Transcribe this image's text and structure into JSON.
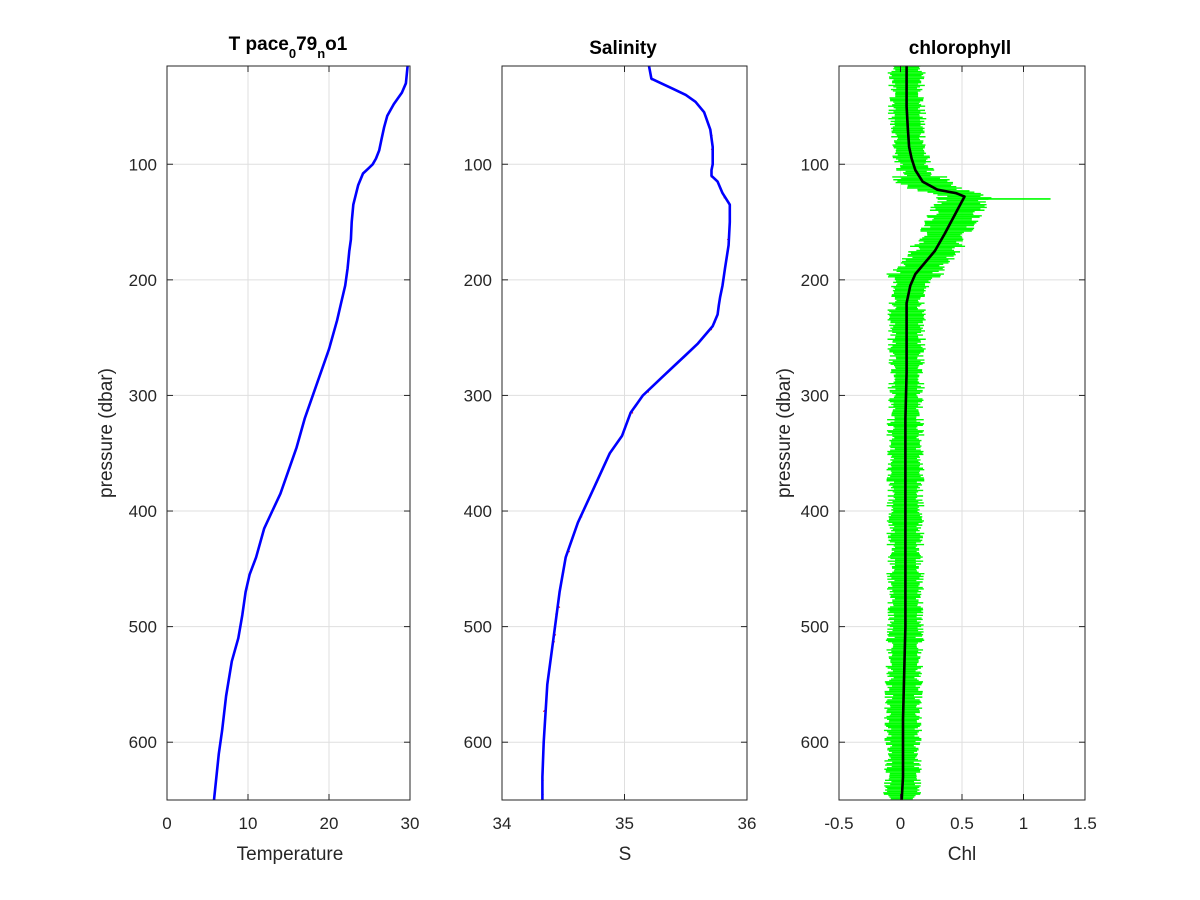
{
  "chart_data": [
    {
      "type": "line",
      "title": "T pace",
      "title_parts": [
        "T pace",
        "0",
        "79",
        "n",
        "o1"
      ],
      "xlabel": "Temperature",
      "ylabel": "pressure (dbar)",
      "xlim": [
        0,
        30
      ],
      "ylim": [
        650,
        15
      ],
      "y_reversed": true,
      "xticks": [
        "0",
        "10",
        "20",
        "30"
      ],
      "yticks": [
        "100",
        "200",
        "300",
        "400",
        "500",
        "600"
      ],
      "grid": true,
      "series": [
        {
          "color": "#0000ff",
          "x": [
            29.7,
            29.6,
            29.5,
            29.0,
            28.0,
            27.2,
            26.8,
            26.5,
            26.2,
            25.8,
            25.4,
            24.8,
            24.2,
            23.6,
            23.0,
            22.8,
            22.7,
            22.5,
            22.3,
            22.0,
            21.5,
            21.0,
            20.0,
            19.0,
            18.0,
            17.0,
            16.0,
            15.0,
            14.0,
            13.0,
            12.0,
            11.0,
            10.2,
            9.7,
            9.3,
            8.8,
            8.0,
            7.3,
            6.8,
            6.4,
            6.1,
            5.8
          ],
          "y": [
            15,
            22,
            30,
            38,
            48,
            58,
            68,
            78,
            88,
            95,
            100,
            104,
            108,
            118,
            135,
            150,
            165,
            175,
            190,
            205,
            220,
            235,
            260,
            280,
            300,
            320,
            345,
            365,
            385,
            400,
            415,
            440,
            455,
            470,
            490,
            510,
            530,
            560,
            590,
            610,
            630,
            650
          ]
        }
      ]
    },
    {
      "type": "line",
      "title": "Salinity",
      "xlabel": "S",
      "ylabel": "",
      "xlim": [
        34,
        36
      ],
      "ylim": [
        650,
        15
      ],
      "y_reversed": true,
      "xticks": [
        "34",
        "35",
        "36"
      ],
      "yticks": [
        "100",
        "200",
        "300",
        "400",
        "500",
        "600"
      ],
      "grid": true,
      "series": [
        {
          "color": "#0000ff",
          "x": [
            35.2,
            35.22,
            35.3,
            35.4,
            35.5,
            35.58,
            35.65,
            35.7,
            35.72,
            35.72,
            35.72,
            35.71,
            35.71,
            35.76,
            35.8,
            35.83,
            35.86,
            35.86,
            35.85,
            35.82,
            35.8,
            35.78,
            35.77,
            35.76,
            35.72,
            35.6,
            35.5,
            35.4,
            35.3,
            35.15,
            35.05,
            34.98,
            34.88,
            34.75,
            34.62,
            34.52,
            34.47,
            34.42,
            34.37,
            34.34,
            34.33,
            34.33
          ],
          "y": [
            15,
            26,
            30,
            35,
            40,
            46,
            55,
            70,
            85,
            95,
            100,
            105,
            110,
            115,
            125,
            130,
            135,
            150,
            170,
            190,
            205,
            215,
            222,
            230,
            240,
            255,
            265,
            275,
            285,
            300,
            315,
            335,
            350,
            380,
            410,
            440,
            470,
            510,
            550,
            600,
            630,
            650
          ]
        }
      ],
      "noise_color": "#ff0000"
    },
    {
      "type": "line",
      "title": "chlorophyll",
      "xlabel": "Chl",
      "ylabel": "pressure (dbar)",
      "xlim": [
        -0.5,
        1.5
      ],
      "ylim": [
        650,
        15
      ],
      "y_reversed": true,
      "xticks": [
        "-0.5",
        "0",
        "0.5",
        "1",
        "1.5"
      ],
      "yticks": [
        "100",
        "200",
        "300",
        "400",
        "500",
        "600"
      ],
      "grid": true,
      "series": [
        {
          "name": "",
          "color": "#000000",
          "x": [
            0.05,
            0.05,
            0.05,
            0.06,
            0.07,
            0.09,
            0.12,
            0.18,
            0.3,
            0.45,
            0.52,
            0.46,
            0.36,
            0.28,
            0.2,
            0.12,
            0.08,
            0.05,
            0.05,
            0.05,
            0.04,
            0.04,
            0.04,
            0.04,
            0.04,
            0.04,
            0.03,
            0.02,
            0.02,
            0.02,
            0.01
          ],
          "y": [
            15,
            30,
            50,
            70,
            85,
            95,
            105,
            115,
            122,
            125,
            128,
            140,
            160,
            175,
            185,
            195,
            205,
            220,
            250,
            280,
            320,
            360,
            400,
            430,
            460,
            500,
            540,
            580,
            600,
            630,
            650
          ]
        }
      ],
      "envelope_color": "#00ff00",
      "envelope_halfwidth": 0.12,
      "spike": {
        "y": 130,
        "x": 1.22
      }
    }
  ]
}
